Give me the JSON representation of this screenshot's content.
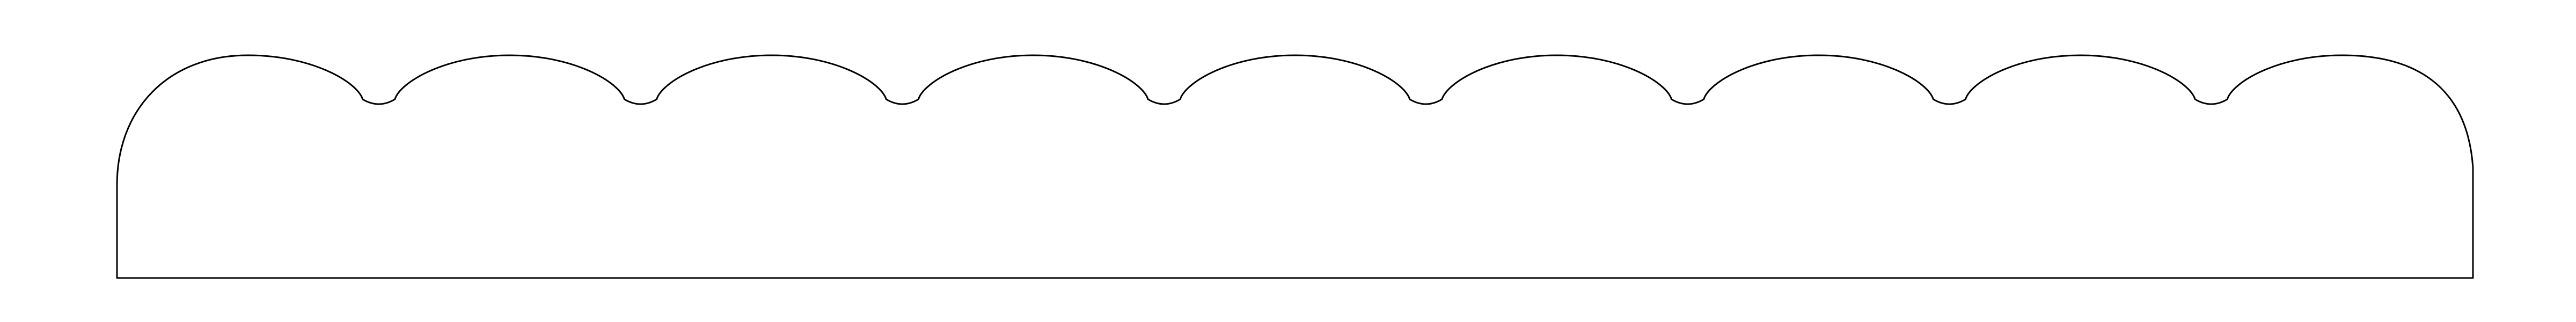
{
  "shape": {
    "kind": "scalloped-border-outline",
    "scallop_count": 9,
    "edge_style": "scalloped top, flat bottom",
    "stroke_color": "#000000",
    "fill_color": "#ffffff",
    "background_color": "#ffffff"
  }
}
